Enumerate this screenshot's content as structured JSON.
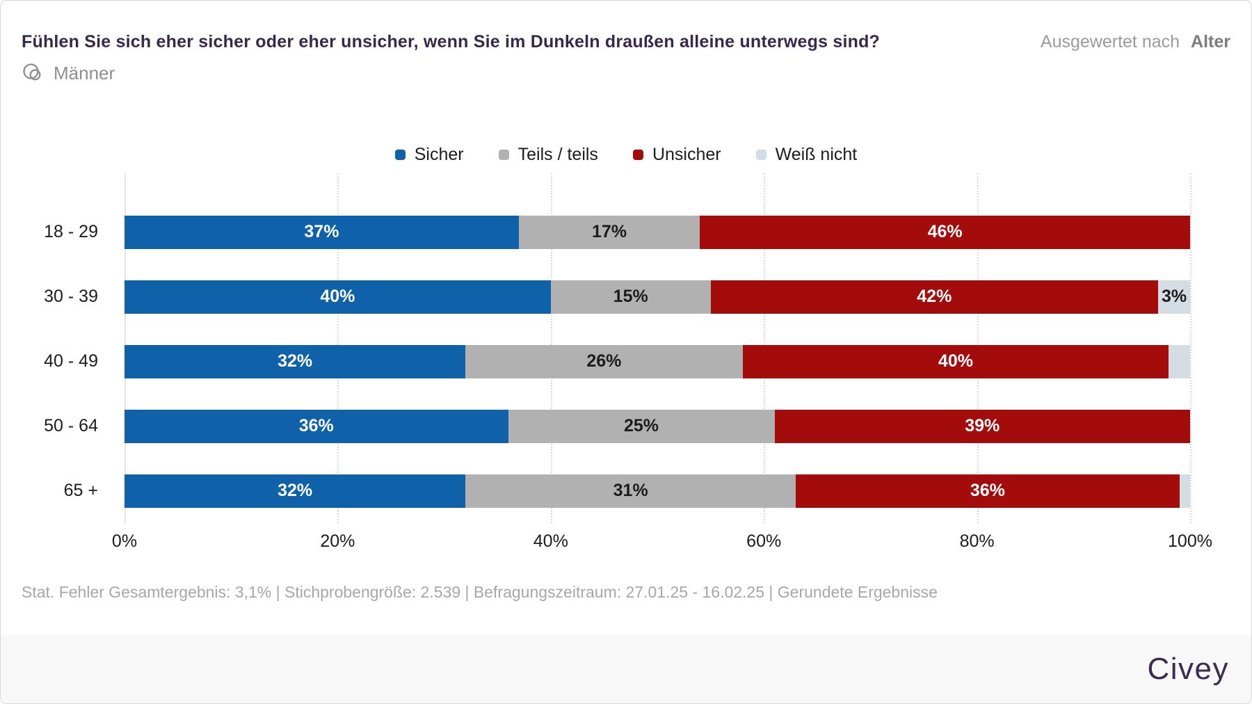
{
  "header": {
    "title": "Fühlen Sie sich eher sicher oder eher unsicher, wenn Sie im Dunkeln draußen alleine unterwegs sind?",
    "evaluated_prefix": "Ausgewertet nach",
    "evaluated_value": "Alter",
    "subgroup": "Männer",
    "subgroup_icon": "overlapping-circles-icon"
  },
  "chart_data": {
    "type": "bar",
    "stacked": true,
    "orientation": "horizontal",
    "unit": "%",
    "categories": [
      "18 - 29",
      "30 - 39",
      "40 - 49",
      "50 - 64",
      "65 +"
    ],
    "series": [
      {
        "name": "Sicher",
        "color": "#0f62a9",
        "label_color": "#ffffff",
        "values": [
          37,
          40,
          32,
          36,
          32
        ]
      },
      {
        "name": "Teils / teils",
        "color": "#b1b1b1",
        "label_color": "#1c1c1c",
        "values": [
          17,
          15,
          26,
          25,
          31
        ]
      },
      {
        "name": "Unsicher",
        "color": "#a40c0c",
        "label_color": "#ffffff",
        "values": [
          46,
          42,
          40,
          39,
          36
        ]
      },
      {
        "name": "Weiß nicht",
        "color": "#d4dce4",
        "label_color": "#1c1c1c",
        "values": [
          0,
          3,
          2,
          0,
          1
        ]
      }
    ],
    "min_label_value": 3,
    "x_ticks": [
      "0%",
      "20%",
      "40%",
      "60%",
      "80%",
      "100%"
    ],
    "xlim": [
      0,
      100
    ],
    "grid": "vertical-dotted",
    "legend_position": "top-center"
  },
  "footer": {
    "note": "Stat. Fehler Gesamtergebnis: 3,1% | Stichprobengröße: 2.539 | Befragungszeitraum: 27.01.25 - 16.02.25 | Gerundete Ergebnisse",
    "brand": "Civey"
  },
  "colors": {
    "title": "#38284c",
    "muted_text": "#9b9b9b",
    "brand": "#3b2b52",
    "band_bg": "#f8f8f9",
    "card_border": "#d6d6d6",
    "gridline": "#d9d9d9"
  }
}
